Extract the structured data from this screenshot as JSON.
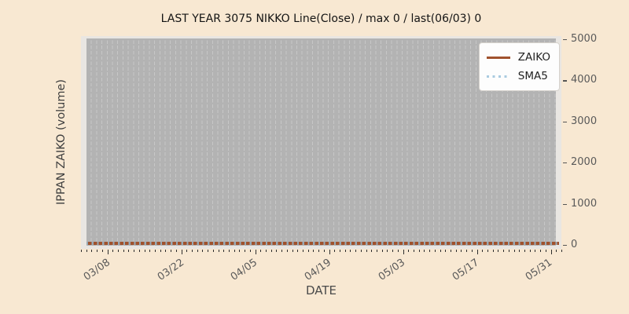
{
  "title": "LAST YEAR 3075 NIKKO Line(Close) / max 0 / last(06/03) 0",
  "chart_data": {
    "type": "line",
    "title": "LAST YEAR 3075 NIKKO Line(Close) / max 0 / last(06/03) 0",
    "xlabel": "DATE",
    "ylabel": "IPPAN ZAIKO (volume)",
    "x_tick_labels": [
      "03/08",
      "03/22",
      "04/05",
      "04/19",
      "05/03",
      "05/17",
      "05/31"
    ],
    "y_tick_labels": [
      "0",
      "1000",
      "2000",
      "3000",
      "4000",
      "5000"
    ],
    "ylim": [
      0,
      5000
    ],
    "x_major_tick_interval_days": 14,
    "x_minor_tick_interval_days": 1,
    "grid": "vertical dashed gridline per day",
    "legend_position": "upper right",
    "series": [
      {
        "name": "ZAIKO",
        "style": "solid",
        "color": "#a0522d",
        "y_constant": 0,
        "y_at_ticks": [
          0,
          0,
          0,
          0,
          0,
          0,
          0
        ]
      },
      {
        "name": "SMA5",
        "style": "dotted",
        "color": "#a9cbe0",
        "y_constant": 0,
        "y_at_ticks": [
          0,
          0,
          0,
          0,
          0,
          0,
          0
        ]
      }
    ],
    "annotations": {
      "max": 0,
      "last_date": "06/03",
      "last_value": 0
    }
  },
  "colors": {
    "figure_bg": "#f8e8d2",
    "plot_edge": "#e9e6e2",
    "plot_bg": "#b3b3b3",
    "gridline": "#c7c7c7",
    "zaiko_line": "#a0522d",
    "sma5_line": "#a9cbe0",
    "tick_label": "#595959"
  }
}
